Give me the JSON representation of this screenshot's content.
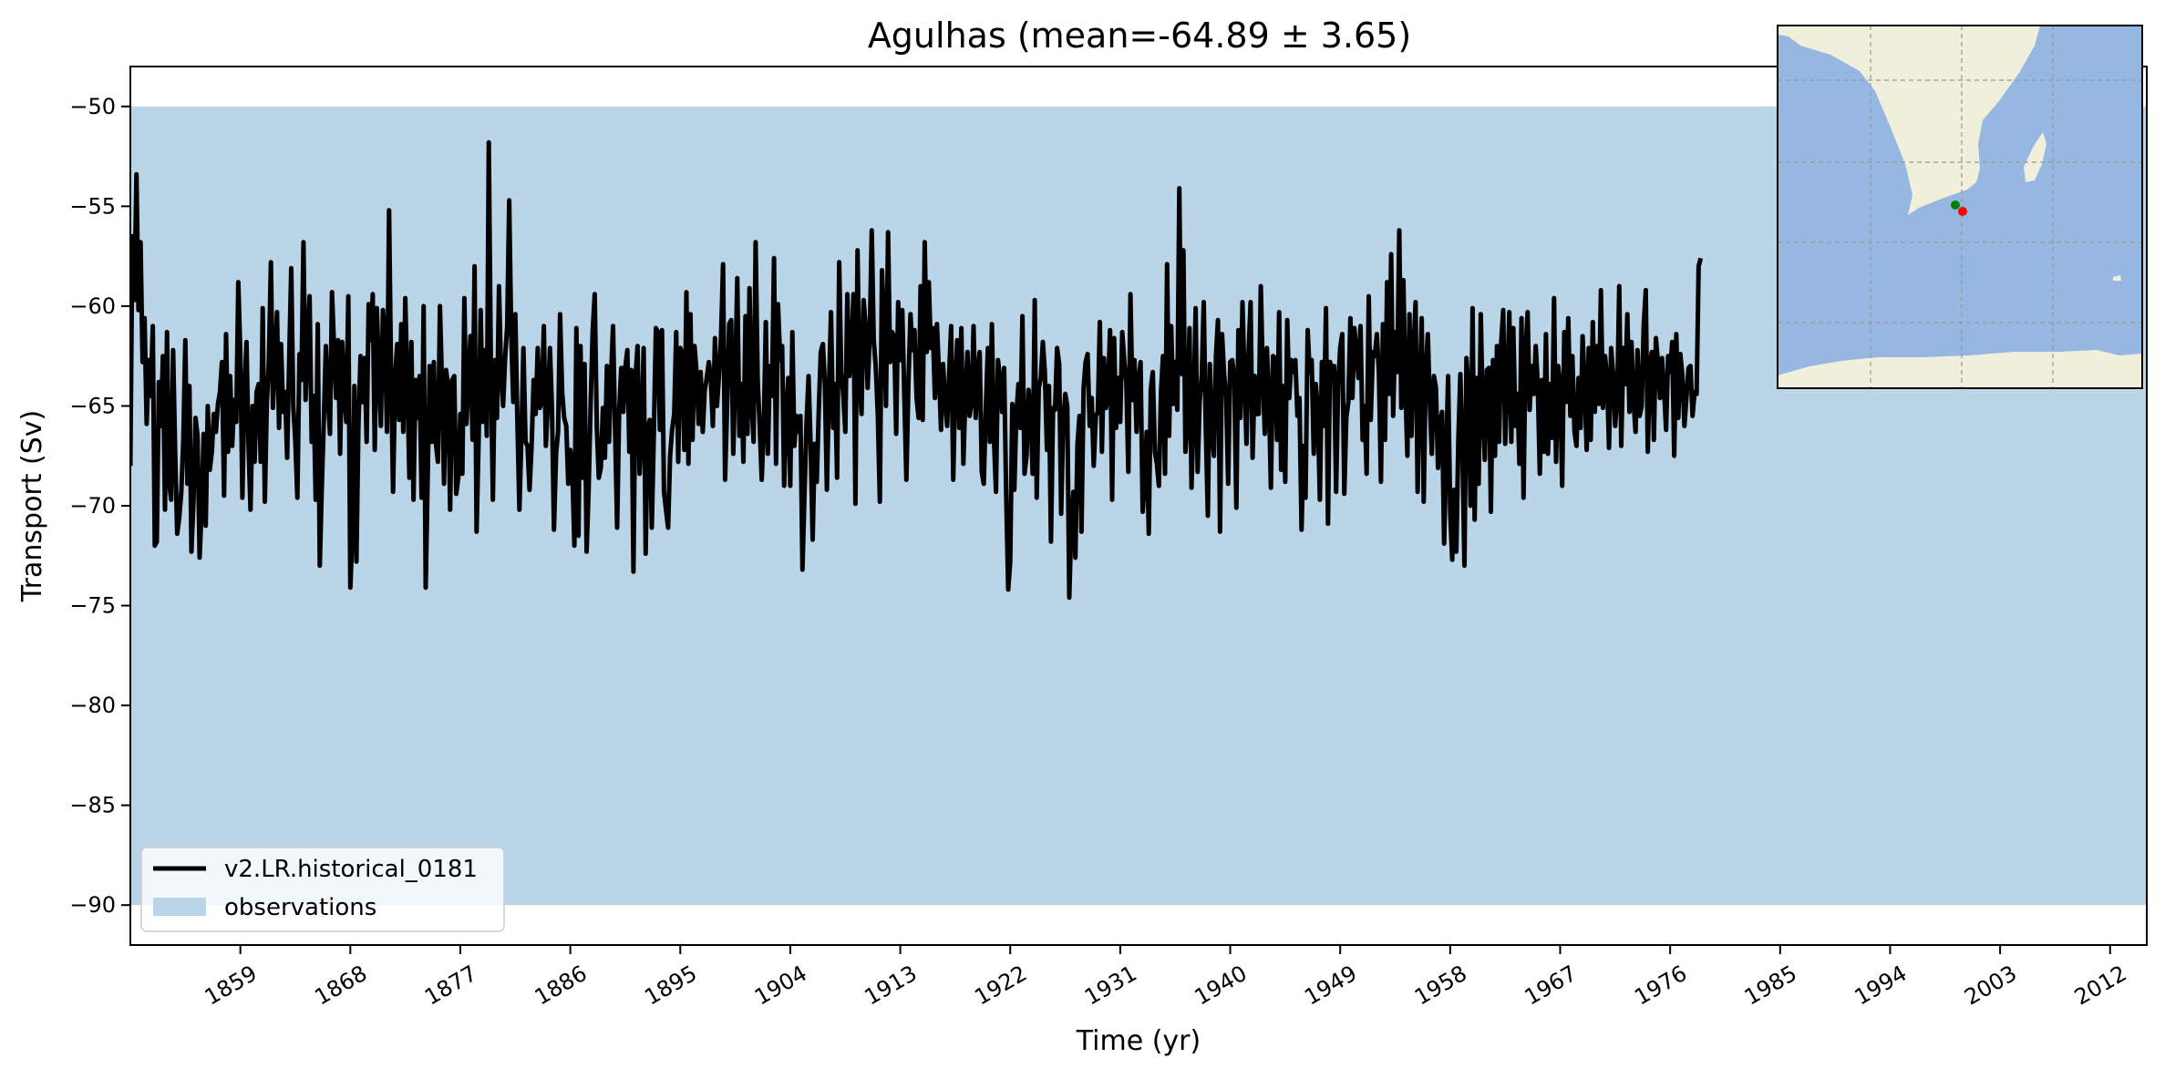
{
  "chart_data": {
    "type": "line",
    "title": "Agulhas (mean=-64.89 ± 3.65)",
    "xlabel": "Time (yr)",
    "ylabel": "Transport (Sv)",
    "xlim": [
      1850,
      2015
    ],
    "ylim": [
      -92,
      -48
    ],
    "xticks": [
      1859,
      1868,
      1877,
      1886,
      1895,
      1904,
      1913,
      1922,
      1931,
      1940,
      1949,
      1958,
      1967,
      1976,
      1985,
      1994,
      2003,
      2012
    ],
    "yticks": [
      -90,
      -85,
      -80,
      -75,
      -70,
      -65,
      -60,
      -55,
      -50
    ],
    "x_tick_rotation_deg": 30,
    "legend_position": "lower-left",
    "grid": false,
    "observations_band": {
      "name": "observations",
      "ymin": -90,
      "ymax": -50,
      "color": "#bad4e8"
    },
    "series": [
      {
        "name": "v2.LR.historical_0181",
        "color": "#000000",
        "x_start": 1850,
        "x_step": 0.166667,
        "values": [
          -68.0,
          -56.5,
          -59.7,
          -53.4,
          -60.2,
          -56.8,
          -62.8,
          -60.6,
          -65.9,
          -62.7,
          -64.5,
          -61.0,
          -72.0,
          -71.8,
          -63.8,
          -66.0,
          -62.5,
          -70.2,
          -61.3,
          -68.8,
          -69.7,
          -62.2,
          -67.4,
          -71.4,
          -70.6,
          -69.3,
          -66.7,
          -61.7,
          -68.9,
          -64.0,
          -72.3,
          -69.7,
          -65.6,
          -66.5,
          -72.6,
          -70.1,
          -66.4,
          -71.0,
          -65.0,
          -68.2,
          -67.3,
          -65.4,
          -66.3,
          -64.9,
          -64.3,
          -62.8,
          -69.5,
          -61.4,
          -67.3,
          -63.5,
          -67.0,
          -64.7,
          -65.8,
          -58.8,
          -62.5,
          -69.6,
          -64.4,
          -61.8,
          -66.9,
          -70.2,
          -65.0,
          -67.8,
          -64.3,
          -63.9,
          -67.8,
          -60.1,
          -69.8,
          -64.9,
          -62.8,
          -57.8,
          -65.1,
          -62.7,
          -60.3,
          -66.1,
          -61.9,
          -65.3,
          -64.3,
          -67.6,
          -62.5,
          -58.1,
          -65.0,
          -66.8,
          -69.6,
          -62.4,
          -63.7,
          -56.8,
          -64.7,
          -61.5,
          -59.5,
          -66.8,
          -64.5,
          -69.7,
          -60.9,
          -73.0,
          -69.1,
          -65.6,
          -62.0,
          -64.6,
          -66.4,
          -59.3,
          -62.0,
          -64.6,
          -61.7,
          -67.4,
          -61.8,
          -64.3,
          -65.8,
          -59.5,
          -74.1,
          -71.5,
          -64.0,
          -72.8,
          -66.0,
          -62.5,
          -64.8,
          -62.6,
          -66.8,
          -59.9,
          -61.7,
          -59.4,
          -67.2,
          -60.1,
          -63.2,
          -66.0,
          -60.2,
          -61.7,
          -66.3,
          -55.2,
          -63.4,
          -69.3,
          -63.5,
          -61.9,
          -65.7,
          -60.9,
          -66.3,
          -59.6,
          -63.9,
          -68.6,
          -61.8,
          -69.7,
          -63.7,
          -65.6,
          -63.5,
          -69.6,
          -60.0,
          -74.1,
          -68.5,
          -63.0,
          -66.8,
          -62.8,
          -66.9,
          -67.8,
          -60.0,
          -63.9,
          -68.9,
          -63.2,
          -64.0,
          -70.2,
          -63.7,
          -63.5,
          -69.4,
          -68.6,
          -65.4,
          -68.4,
          -59.6,
          -65.9,
          -63.7,
          -61.5,
          -66.7,
          -58.0,
          -71.3,
          -66.6,
          -60.2,
          -65.8,
          -62.2,
          -66.5,
          -51.8,
          -63.0,
          -69.7,
          -62.7,
          -65.6,
          -59.0,
          -63.5,
          -65.0,
          -62.6,
          -61.0,
          -54.7,
          -61.4,
          -64.8,
          -60.4,
          -65.6,
          -70.2,
          -66.5,
          -62.1,
          -66.8,
          -67.0,
          -69.2,
          -67.0,
          -63.7,
          -65.4,
          -62.1,
          -65.1,
          -64.8,
          -61.0,
          -67.0,
          -64.9,
          -62.1,
          -65.1,
          -71.2,
          -67.4,
          -66.3,
          -60.4,
          -64.3,
          -65.6,
          -66.0,
          -68.9,
          -67.2,
          -68.3,
          -72.0,
          -61.1,
          -71.5,
          -62.0,
          -68.6,
          -62.9,
          -72.3,
          -69.2,
          -64.8,
          -61.2,
          -59.4,
          -66.1,
          -68.6,
          -68.1,
          -65.1,
          -67.6,
          -63.0,
          -66.8,
          -63.5,
          -61.0,
          -66.3,
          -71.1,
          -65.3,
          -63.1,
          -65.3,
          -63.1,
          -62.2,
          -67.3,
          -63.2,
          -73.3,
          -63.6,
          -62.0,
          -68.4,
          -66.1,
          -62.1,
          -72.4,
          -66.1,
          -65.7,
          -71.1,
          -66.5,
          -61.1,
          -61.3,
          -66.2,
          -61.2,
          -69.3,
          -70.2,
          -71.1,
          -67.5,
          -66.2,
          -65.4,
          -61.3,
          -67.8,
          -62.1,
          -62.4,
          -67.2,
          -59.3,
          -67.9,
          -60.4,
          -66.7,
          -62.0,
          -63.3,
          -65.9,
          -63.3,
          -66.3,
          -64.2,
          -63.6,
          -62.8,
          -63.7,
          -66.0,
          -61.6,
          -65.0,
          -63.5,
          -61.5,
          -57.9,
          -68.7,
          -64.9,
          -60.9,
          -60.7,
          -67.4,
          -63.5,
          -58.6,
          -66.5,
          -63.9,
          -67.8,
          -60.5,
          -66.4,
          -59.1,
          -64.8,
          -66.8,
          -56.8,
          -63.7,
          -66.0,
          -68.7,
          -66.0,
          -60.8,
          -67.4,
          -63.0,
          -64.5,
          -57.6,
          -67.9,
          -59.9,
          -62.7,
          -62.0,
          -69.0,
          -65.4,
          -63.6,
          -69.0,
          -61.3,
          -67.0,
          -65.5,
          -66.3,
          -65.5,
          -73.2,
          -69.3,
          -65.8,
          -63.5,
          -67.0,
          -71.7,
          -66.9,
          -68.8,
          -65.2,
          -62.3,
          -61.9,
          -63.9,
          -69.2,
          -64.1,
          -60.3,
          -66.1,
          -63.9,
          -68.6,
          -57.8,
          -63.3,
          -64.4,
          -66.3,
          -59.4,
          -63.5,
          -62.4,
          -59.4,
          -69.9,
          -57.2,
          -63.7,
          -65.4,
          -59.7,
          -61.0,
          -64.1,
          -61.5,
          -56.2,
          -61.7,
          -63.1,
          -65.5,
          -69.8,
          -58.2,
          -60.9,
          -65.0,
          -56.3,
          -62.8,
          -61.3,
          -61.5,
          -66.4,
          -59.8,
          -62.7,
          -60.2,
          -64.6,
          -68.7,
          -63.9,
          -60.4,
          -62.2,
          -61.2,
          -64.6,
          -65.6,
          -59.0,
          -65.7,
          -56.8,
          -62.3,
          -58.8,
          -62.1,
          -61.1,
          -64.6,
          -60.9,
          -63.3,
          -66.2,
          -62.9,
          -64.6,
          -66.0,
          -63.4,
          -61.0,
          -68.7,
          -64.0,
          -61.7,
          -66.1,
          -61.1,
          -67.9,
          -64.4,
          -62.3,
          -65.5,
          -64.8,
          -61.0,
          -65.6,
          -63.3,
          -62.3,
          -68.3,
          -68.9,
          -65.2,
          -62.1,
          -66.8,
          -60.9,
          -66.7,
          -69.3,
          -62.7,
          -63.7,
          -65.3,
          -63.1,
          -69.5,
          -74.2,
          -72.8,
          -64.9,
          -69.2,
          -65.5,
          -63.9,
          -66.1,
          -60.5,
          -68.4,
          -67.5,
          -64.2,
          -65.3,
          -68.4,
          -59.7,
          -69.6,
          -64.1,
          -63.6,
          -61.8,
          -63.3,
          -67.2,
          -64.0,
          -71.8,
          -65.1,
          -65.2,
          -62.1,
          -62.9,
          -70.4,
          -66.0,
          -64.4,
          -65.0,
          -74.6,
          -70.7,
          -69.3,
          -72.6,
          -66.9,
          -65.5,
          -71.3,
          -64.1,
          -62.8,
          -62.4,
          -66.0,
          -64.6,
          -68.0,
          -65.5,
          -65.3,
          -60.8,
          -67.3,
          -62.6,
          -65.1,
          -64.2,
          -61.2,
          -69.7,
          -61.6,
          -66.1,
          -63.6,
          -65.8,
          -61.3,
          -62.8,
          -63.8,
          -68.3,
          -59.4,
          -64.7,
          -62.7,
          -66.3,
          -63.7,
          -62.8,
          -70.3,
          -68.8,
          -66.3,
          -71.4,
          -64.2,
          -63.3,
          -67.3,
          -67.9,
          -69.0,
          -64.3,
          -62.5,
          -68.4,
          -57.9,
          -66.5,
          -61.0,
          -64.9,
          -62.8,
          -65.2,
          -54.1,
          -63.4,
          -57.2,
          -67.3,
          -65.8,
          -61.1,
          -69.1,
          -65.5,
          -60.1,
          -68.3,
          -64.8,
          -63.5,
          -59.8,
          -66.0,
          -70.5,
          -62.9,
          -66.1,
          -67.5,
          -62.5,
          -60.7,
          -71.3,
          -61.4,
          -63.4,
          -64.5,
          -68.9,
          -62.8,
          -62.7,
          -63.6,
          -70.1,
          -61.2,
          -65.6,
          -59.8,
          -63.5,
          -66.9,
          -62.3,
          -59.8,
          -67.6,
          -63.5,
          -65.4,
          -65.4,
          -59.0,
          -63.4,
          -66.4,
          -62.1,
          -64.7,
          -69.1,
          -62.5,
          -62.6,
          -66.7,
          -60.3,
          -68.2,
          -64.0,
          -68.8,
          -60.7,
          -64.6,
          -62.7,
          -63.3,
          -62.7,
          -65.5,
          -64.6,
          -71.2,
          -67.0,
          -69.6,
          -61.2,
          -63.3,
          -62.7,
          -67.4,
          -63.9,
          -65.2,
          -69.7,
          -62.8,
          -66.0,
          -60.1,
          -70.9,
          -62.8,
          -63.2,
          -63.0,
          -69.3,
          -63.9,
          -62.1,
          -61.4,
          -69.4,
          -65.6,
          -64.8,
          -60.6,
          -64.6,
          -61.1,
          -62.3,
          -63.6,
          -61.0,
          -66.7,
          -65.0,
          -68.4,
          -59.5,
          -65.7,
          -62.3,
          -62.5,
          -61.4,
          -63.4,
          -68.8,
          -60.9,
          -66.7,
          -58.8,
          -64.4,
          -57.4,
          -65.5,
          -61.3,
          -63.3,
          -56.2,
          -65.1,
          -58.7,
          -64.1,
          -67.5,
          -60.4,
          -66.5,
          -62.3,
          -59.8,
          -69.3,
          -64.4,
          -60.6,
          -69.8,
          -63.3,
          -61.4,
          -64.8,
          -67.4,
          -63.5,
          -64.1,
          -68.1,
          -65.8,
          -65.3,
          -71.9,
          -67.5,
          -63.5,
          -70.4,
          -72.7,
          -69.2,
          -72.3,
          -66.7,
          -63.4,
          -67.3,
          -73.0,
          -62.6,
          -64.3,
          -70.0,
          -60.1,
          -70.7,
          -63.6,
          -68.9,
          -60.4,
          -65.3,
          -67.7,
          -63.2,
          -63.1,
          -70.3,
          -62.7,
          -67.5,
          -62.0,
          -66.8,
          -61.9,
          -60.2,
          -66.9,
          -64.0,
          -60.3,
          -66.8,
          -61.1,
          -66.0,
          -64.4,
          -67.9,
          -60.6,
          -69.6,
          -62.3,
          -60.3,
          -65.2,
          -63.0,
          -64.4,
          -62.0,
          -63.9,
          -68.4,
          -63.7,
          -67.3,
          -61.4,
          -67.4,
          -63.9,
          -66.6,
          -59.6,
          -67.8,
          -63.0,
          -64.0,
          -69.0,
          -61.3,
          -64.8,
          -60.6,
          -65.5,
          -62.5,
          -66.3,
          -67.0,
          -63.6,
          -66.1,
          -61.5,
          -63.9,
          -67.2,
          -62.1,
          -66.7,
          -60.8,
          -65.3,
          -62.0,
          -64.9,
          -59.2,
          -65.1,
          -62.5,
          -63.6,
          -67.1,
          -62.1,
          -63.4,
          -66.0,
          -64.6,
          -59.0,
          -67.0,
          -62.1,
          -63.9,
          -60.4,
          -65.3,
          -61.8,
          -64.7,
          -66.3,
          -62.2,
          -65.5,
          -65.0,
          -61.0,
          -59.2,
          -67.3,
          -63.0,
          -62.3,
          -66.7,
          -61.6,
          -62.8,
          -64.6,
          -62.6,
          -64.2,
          -66.2,
          -62.5,
          -63.3,
          -61.8,
          -67.5,
          -61.4,
          -65.6,
          -62.4,
          -63.5,
          -66.0,
          -64.6,
          -63.1,
          -63.0,
          -65.5,
          -64.3,
          -64.4,
          -58.0,
          -57.6
        ]
      }
    ]
  },
  "inset_map": {
    "ocean_color": "#95b7e2",
    "land_color": "#efefdb",
    "markers": [
      {
        "name": "green-marker",
        "color": "#008000"
      },
      {
        "name": "red-marker",
        "color": "#ff0000"
      }
    ]
  }
}
